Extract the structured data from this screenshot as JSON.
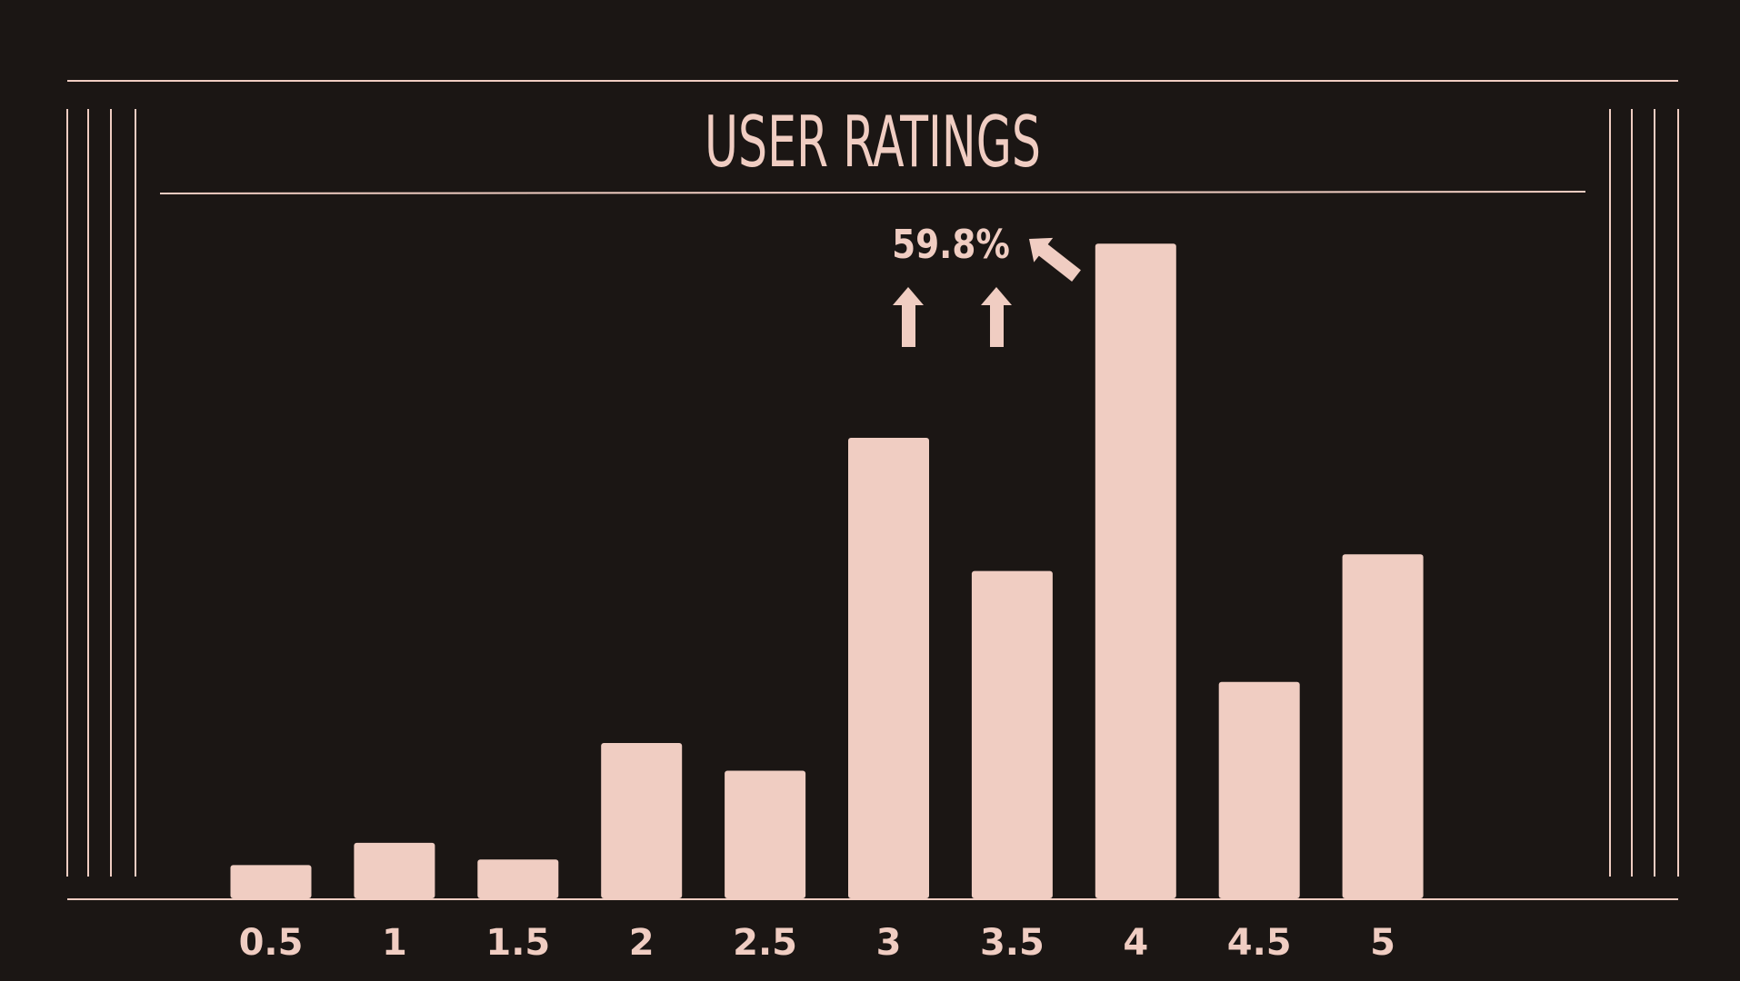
{
  "colors": {
    "background": "#1b1614",
    "accent": "#f0cdc2"
  },
  "chart_data": {
    "type": "bar",
    "title": "USER RATINGS",
    "xlabel": "",
    "ylabel": "",
    "categories": [
      "0.5",
      "1",
      "1.5",
      "2",
      "2.5",
      "3",
      "3.5",
      "4",
      "4.5",
      "5"
    ],
    "values": [
      3,
      5,
      3.5,
      14,
      11.5,
      41.5,
      29.5,
      59,
      19.5,
      31
    ],
    "ylim": [
      0,
      60
    ],
    "grid": false,
    "legend": "none",
    "annotation": {
      "text": "59.8%",
      "icons": [
        "arrow-up-icon",
        "arrow-up-icon",
        "arrow-up-left-icon"
      ]
    }
  }
}
